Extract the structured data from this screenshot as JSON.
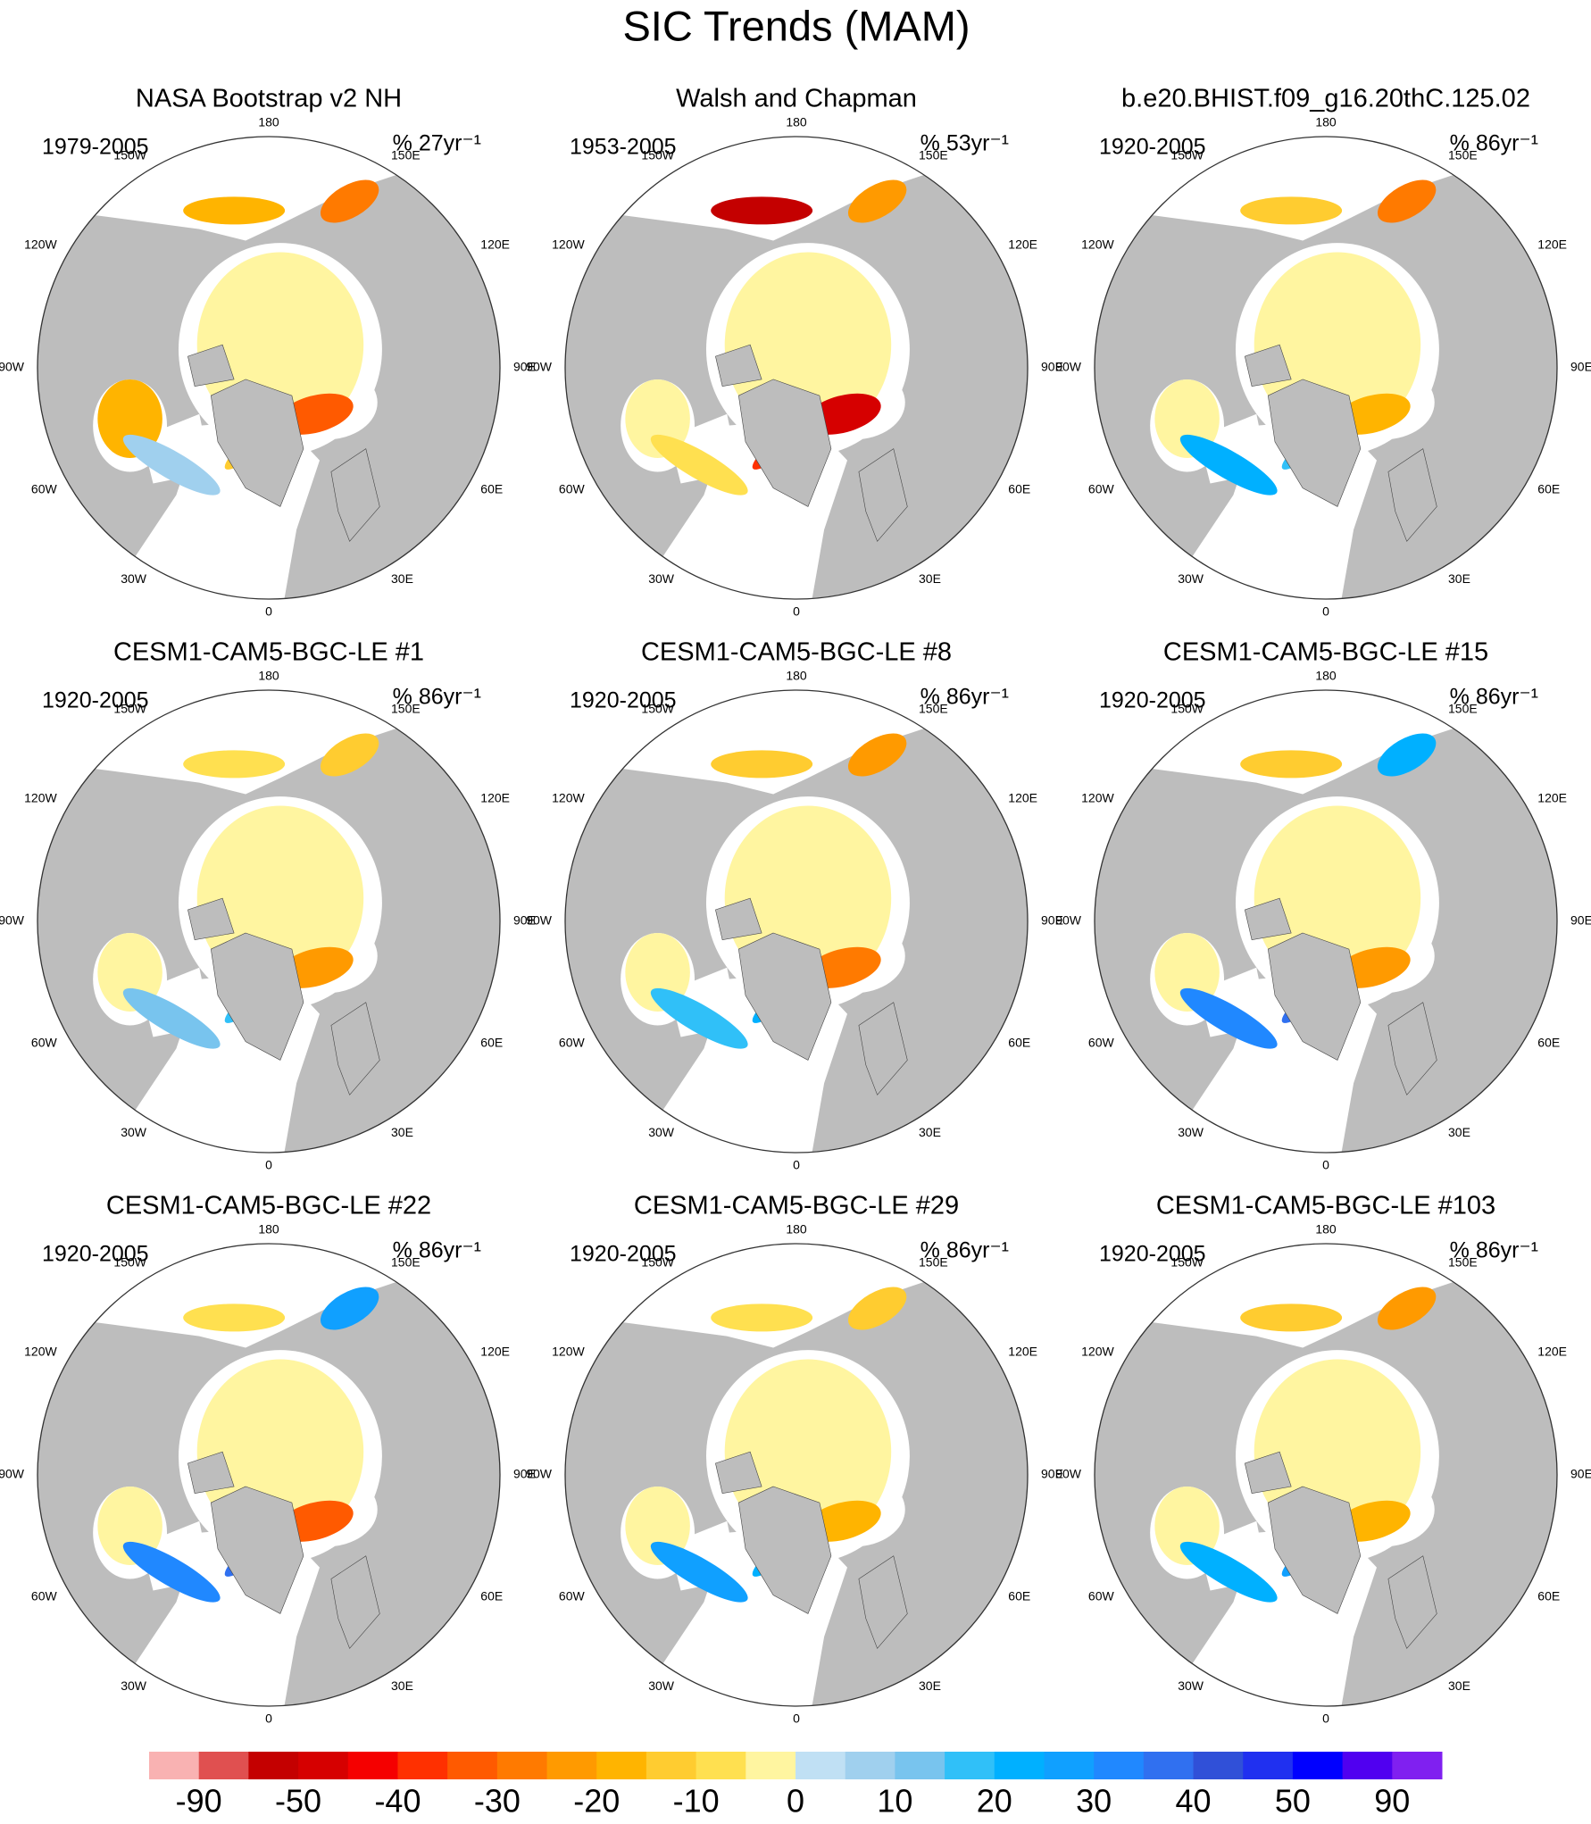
{
  "title": "SIC Trends (MAM)",
  "lon_labels": [
    "0",
    "30E",
    "60E",
    "90E",
    "120E",
    "150E",
    "180",
    "150W",
    "120W",
    "90W",
    "60W",
    "30W"
  ],
  "panels": [
    {
      "title": "NASA Bootstrap v2 NH",
      "period": "1979-2005",
      "units": "% 27yr⁻¹"
    },
    {
      "title": "Walsh and Chapman",
      "period": "1953-2005",
      "units": "% 53yr⁻¹"
    },
    {
      "title": "b.e20.BHIST.f09_g16.20thC.125.02",
      "period": "1920-2005",
      "units": "% 86yr⁻¹"
    },
    {
      "title": "CESM1-CAM5-BGC-LE #1",
      "period": "1920-2005",
      "units": "% 86yr⁻¹"
    },
    {
      "title": "CESM1-CAM5-BGC-LE #8",
      "period": "1920-2005",
      "units": "% 86yr⁻¹"
    },
    {
      "title": "CESM1-CAM5-BGC-LE #15",
      "period": "1920-2005",
      "units": "% 86yr⁻¹"
    },
    {
      "title": "CESM1-CAM5-BGC-LE #22",
      "period": "1920-2005",
      "units": "% 86yr⁻¹"
    },
    {
      "title": "CESM1-CAM5-BGC-LE #29",
      "period": "1920-2005",
      "units": "% 86yr⁻¹"
    },
    {
      "title": "CESM1-CAM5-BGC-LE #103",
      "period": "1920-2005",
      "units": "% 86yr⁻¹"
    }
  ],
  "colorbar": {
    "colors": [
      "#f9b2b2",
      "#e05050",
      "#c40000",
      "#d60000",
      "#f50000",
      "#ff3000",
      "#ff5a00",
      "#ff7a00",
      "#ff9a00",
      "#ffb400",
      "#ffcc30",
      "#ffe050",
      "#fff5a0",
      "#c0e0f4",
      "#a0d0ee",
      "#78c4ee",
      "#30c0f8",
      "#00b0ff",
      "#10a0ff",
      "#2088ff",
      "#3070f0",
      "#3050d8",
      "#2030f0",
      "#0000ff",
      "#5000f0",
      "#8020f0"
    ],
    "labels": [
      -90,
      -50,
      -40,
      -30,
      -20,
      -10,
      0,
      10,
      20,
      30,
      40,
      50,
      90
    ]
  }
}
